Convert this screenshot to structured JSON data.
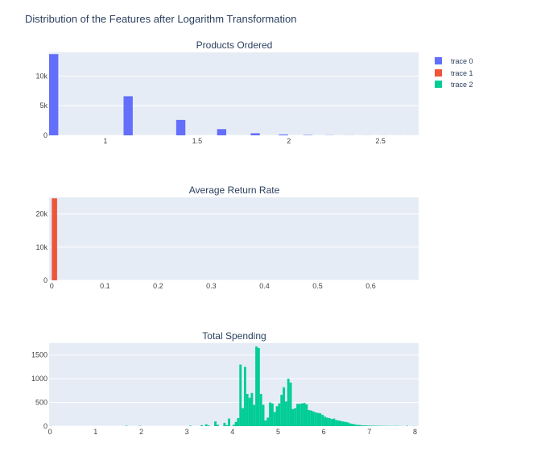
{
  "title": "Distribution of the Features after Logarithm Transformation",
  "colors": {
    "plot_bg": "#e5ecf6",
    "grid": "#ffffff",
    "text": "#2a3f5f"
  },
  "legend": [
    {
      "label": "trace 0",
      "color": "#636efa"
    },
    {
      "label": "trace 1",
      "color": "#ef553b"
    },
    {
      "label": "trace 2",
      "color": "#00cc96"
    }
  ],
  "chart_data": [
    {
      "type": "bar",
      "title": "Products Ordered",
      "series_name": "trace 0",
      "color": "#636efa",
      "xlim": [
        0.693,
        2.708
      ],
      "ylim": [
        0,
        14000
      ],
      "x_ticks": [
        1,
        1.5,
        2,
        2.5
      ],
      "x_tick_labels": [
        "1",
        "1.5",
        "2",
        "2.5"
      ],
      "y_ticks": [
        0,
        5000,
        10000
      ],
      "y_tick_labels": [
        "0",
        "5k",
        "10k"
      ],
      "bin_width": 0.05,
      "bins": [
        {
          "x": 0.693,
          "value": 13700
        },
        {
          "x": 1.099,
          "value": 6600
        },
        {
          "x": 1.386,
          "value": 2600
        },
        {
          "x": 1.609,
          "value": 1050
        },
        {
          "x": 1.792,
          "value": 350
        },
        {
          "x": 1.946,
          "value": 150
        },
        {
          "x": 2.079,
          "value": 60
        },
        {
          "x": 2.197,
          "value": 30
        },
        {
          "x": 2.303,
          "value": 15
        },
        {
          "x": 2.398,
          "value": 10
        },
        {
          "x": 2.485,
          "value": 8
        },
        {
          "x": 2.565,
          "value": 6
        },
        {
          "x": 2.639,
          "value": 5
        }
      ]
    },
    {
      "type": "bar",
      "title": "Average Return Rate",
      "series_name": "trace 1",
      "color": "#ef553b",
      "xlim": [
        -0.005,
        0.69
      ],
      "ylim": [
        0,
        25000
      ],
      "x_ticks": [
        0,
        0.1,
        0.2,
        0.3,
        0.4,
        0.5,
        0.6
      ],
      "x_tick_labels": [
        "0",
        "0.1",
        "0.2",
        "0.3",
        "0.4",
        "0.5",
        "0.6"
      ],
      "y_ticks": [
        0,
        10000,
        20000
      ],
      "y_tick_labels": [
        "0",
        "10k",
        "20k"
      ],
      "bin_width": 0.01,
      "bins": [
        {
          "x": 0,
          "value": 24700
        }
      ]
    },
    {
      "type": "bar",
      "title": "Total Spending",
      "series_name": "trace 2",
      "color": "#00cc96",
      "xlim": [
        -0.02,
        8.08
      ],
      "ylim": [
        0,
        1750
      ],
      "x_ticks": [
        0,
        1,
        2,
        3,
        4,
        5,
        6,
        7,
        8
      ],
      "x_tick_labels": [
        "0",
        "1",
        "2",
        "3",
        "4",
        "5",
        "6",
        "7",
        "8"
      ],
      "y_ticks": [
        0,
        500,
        1000,
        1500
      ],
      "y_tick_labels": [
        "0",
        "500",
        "1000",
        "1500"
      ],
      "bin_width": 0.05,
      "bins": [
        {
          "x": 0.0,
          "value": 3
        },
        {
          "x": 1.65,
          "value": 8
        },
        {
          "x": 1.95,
          "value": 6
        },
        {
          "x": 3.05,
          "value": 10
        },
        {
          "x": 3.3,
          "value": 20
        },
        {
          "x": 3.4,
          "value": 40
        },
        {
          "x": 3.45,
          "value": 15
        },
        {
          "x": 3.6,
          "value": 100
        },
        {
          "x": 3.65,
          "value": 30
        },
        {
          "x": 3.8,
          "value": 70
        },
        {
          "x": 3.85,
          "value": 20
        },
        {
          "x": 3.9,
          "value": 160
        },
        {
          "x": 4.0,
          "value": 30
        },
        {
          "x": 4.05,
          "value": 90
        },
        {
          "x": 4.1,
          "value": 170
        },
        {
          "x": 4.15,
          "value": 1300
        },
        {
          "x": 4.2,
          "value": 380
        },
        {
          "x": 4.25,
          "value": 1250
        },
        {
          "x": 4.3,
          "value": 680
        },
        {
          "x": 4.35,
          "value": 600
        },
        {
          "x": 4.4,
          "value": 700
        },
        {
          "x": 4.45,
          "value": 450
        },
        {
          "x": 4.5,
          "value": 1680
        },
        {
          "x": 4.55,
          "value": 1650
        },
        {
          "x": 4.6,
          "value": 680
        },
        {
          "x": 4.65,
          "value": 450
        },
        {
          "x": 4.7,
          "value": 120
        },
        {
          "x": 4.75,
          "value": 180
        },
        {
          "x": 4.8,
          "value": 500
        },
        {
          "x": 4.85,
          "value": 480
        },
        {
          "x": 4.9,
          "value": 300
        },
        {
          "x": 4.95,
          "value": 420
        },
        {
          "x": 5.0,
          "value": 480
        },
        {
          "x": 5.05,
          "value": 660
        },
        {
          "x": 5.1,
          "value": 820
        },
        {
          "x": 5.15,
          "value": 520
        },
        {
          "x": 5.2,
          "value": 1000
        },
        {
          "x": 5.25,
          "value": 920
        },
        {
          "x": 5.3,
          "value": 360
        },
        {
          "x": 5.35,
          "value": 380
        },
        {
          "x": 5.4,
          "value": 470
        },
        {
          "x": 5.45,
          "value": 470
        },
        {
          "x": 5.5,
          "value": 480
        },
        {
          "x": 5.55,
          "value": 490
        },
        {
          "x": 5.6,
          "value": 460
        },
        {
          "x": 5.65,
          "value": 340
        },
        {
          "x": 5.7,
          "value": 330
        },
        {
          "x": 5.75,
          "value": 310
        },
        {
          "x": 5.8,
          "value": 290
        },
        {
          "x": 5.85,
          "value": 280
        },
        {
          "x": 5.9,
          "value": 270
        },
        {
          "x": 5.95,
          "value": 240
        },
        {
          "x": 6.0,
          "value": 200
        },
        {
          "x": 6.05,
          "value": 180
        },
        {
          "x": 6.1,
          "value": 170
        },
        {
          "x": 6.15,
          "value": 150
        },
        {
          "x": 6.2,
          "value": 160
        },
        {
          "x": 6.25,
          "value": 130
        },
        {
          "x": 6.3,
          "value": 120
        },
        {
          "x": 6.35,
          "value": 110
        },
        {
          "x": 6.4,
          "value": 100
        },
        {
          "x": 6.45,
          "value": 90
        },
        {
          "x": 6.5,
          "value": 80
        },
        {
          "x": 6.55,
          "value": 60
        },
        {
          "x": 6.6,
          "value": 50
        },
        {
          "x": 6.65,
          "value": 40
        },
        {
          "x": 6.7,
          "value": 30
        },
        {
          "x": 6.75,
          "value": 25
        },
        {
          "x": 6.8,
          "value": 20
        },
        {
          "x": 6.85,
          "value": 15
        },
        {
          "x": 6.9,
          "value": 15
        },
        {
          "x": 6.95,
          "value": 12
        },
        {
          "x": 7.0,
          "value": 10
        },
        {
          "x": 7.05,
          "value": 10
        },
        {
          "x": 7.1,
          "value": 8
        },
        {
          "x": 7.15,
          "value": 8
        },
        {
          "x": 7.2,
          "value": 6
        },
        {
          "x": 7.25,
          "value": 6
        },
        {
          "x": 7.3,
          "value": 5
        },
        {
          "x": 7.35,
          "value": 5
        },
        {
          "x": 7.4,
          "value": 4
        },
        {
          "x": 7.45,
          "value": 4
        },
        {
          "x": 7.5,
          "value": 3
        },
        {
          "x": 7.55,
          "value": 6
        },
        {
          "x": 7.6,
          "value": 3
        },
        {
          "x": 7.65,
          "value": 3
        },
        {
          "x": 7.7,
          "value": 2
        },
        {
          "x": 7.8,
          "value": 8
        },
        {
          "x": 7.95,
          "value": 3
        },
        {
          "x": 8.0,
          "value": 2
        }
      ]
    }
  ]
}
